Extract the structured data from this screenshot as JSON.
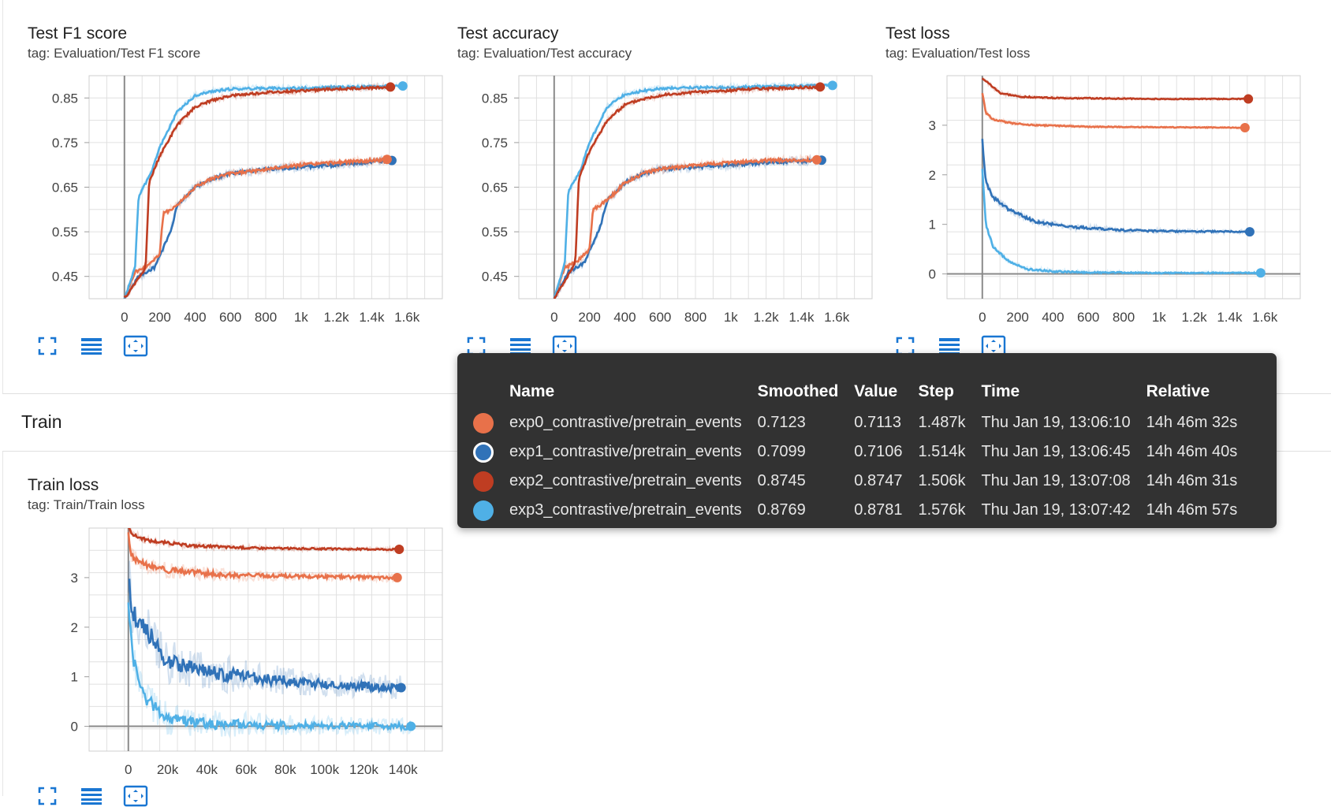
{
  "colors": {
    "exp0": "#e8714a",
    "exp1": "#3072b8",
    "exp2": "#bf3d22",
    "exp3": "#4fb0e6",
    "accent": "#1976d2"
  },
  "charts": {
    "f1": {
      "title": "Test F1 score",
      "tag": "tag: Evaluation/Test F1 score",
      "y_ticks": [
        "0.85",
        "0.75",
        "0.65",
        "0.55",
        "0.45"
      ],
      "x_ticks": [
        "0",
        "200",
        "400",
        "600",
        "800",
        "1k",
        "1.2k",
        "1.4k",
        "1.6k"
      ]
    },
    "acc": {
      "title": "Test accuracy",
      "tag": "tag: Evaluation/Test accuracy",
      "y_ticks": [
        "0.85",
        "0.75",
        "0.65",
        "0.55",
        "0.45"
      ],
      "x_ticks": [
        "0",
        "200",
        "400",
        "600",
        "800",
        "1k",
        "1.2k",
        "1.4k",
        "1.6k"
      ]
    },
    "loss": {
      "title": "Test loss",
      "tag": "tag: Evaluation/Test loss",
      "y_ticks": [
        "3",
        "2",
        "1",
        "0"
      ],
      "x_ticks": [
        "0",
        "200",
        "400",
        "600",
        "800",
        "1k",
        "1.2k",
        "1.4k",
        "1.6k"
      ]
    },
    "train": {
      "title": "Train loss",
      "tag": "tag: Train/Train loss",
      "y_ticks": [
        "3",
        "2",
        "1",
        "0"
      ],
      "x_ticks": [
        "0",
        "20k",
        "40k",
        "60k",
        "80k",
        "100k",
        "120k",
        "140k"
      ]
    }
  },
  "section": {
    "title": "Train"
  },
  "toolbar_icons": [
    "fullscreen-icon",
    "data-table-icon",
    "fit-domain-icon"
  ],
  "tooltip": {
    "headers": [
      "Name",
      "Smoothed",
      "Value",
      "Step",
      "Time",
      "Relative"
    ],
    "rows": [
      {
        "name": "exp0_contrastive/pretrain_events",
        "smoothed": "0.7123",
        "value": "0.7113",
        "step": "1.487k",
        "time": "Thu Jan 19, 13:06:10",
        "relative": "14h 46m 32s"
      },
      {
        "name": "exp1_contrastive/pretrain_events",
        "smoothed": "0.7099",
        "value": "0.7106",
        "step": "1.514k",
        "time": "Thu Jan 19, 13:06:45",
        "relative": "14h 46m 40s"
      },
      {
        "name": "exp2_contrastive/pretrain_events",
        "smoothed": "0.8745",
        "value": "0.8747",
        "step": "1.506k",
        "time": "Thu Jan 19, 13:07:08",
        "relative": "14h 46m 31s"
      },
      {
        "name": "exp3_contrastive/pretrain_events",
        "smoothed": "0.8769",
        "value": "0.8781",
        "step": "1.576k",
        "time": "Thu Jan 19, 13:07:42",
        "relative": "14h 46m 57s"
      }
    ]
  },
  "chart_data": [
    {
      "type": "line",
      "title": "Test F1 score",
      "x_ticks": [
        "0",
        "200",
        "400",
        "600",
        "800",
        "1k",
        "1.2k",
        "1.4k",
        "1.6k"
      ],
      "xlim": [
        -200,
        1800
      ],
      "ylim": [
        0.4,
        0.9
      ],
      "series": [
        {
          "name": "exp0_contrastive/pretrain_events",
          "x": [
            0,
            60,
            120,
            200,
            220,
            300,
            400,
            500,
            600,
            800,
            1000,
            1200,
            1487
          ],
          "y": [
            0.4,
            0.46,
            0.47,
            0.5,
            0.59,
            0.61,
            0.65,
            0.67,
            0.68,
            0.69,
            0.7,
            0.705,
            0.7123
          ]
        },
        {
          "name": "exp1_contrastive/pretrain_events",
          "x": [
            0,
            80,
            170,
            260,
            300,
            400,
            500,
            600,
            800,
            1000,
            1200,
            1514
          ],
          "y": [
            0.4,
            0.45,
            0.47,
            0.55,
            0.61,
            0.65,
            0.67,
            0.68,
            0.69,
            0.695,
            0.7,
            0.7099
          ]
        },
        {
          "name": "exp2_contrastive/pretrain_events",
          "x": [
            0,
            120,
            140,
            200,
            300,
            400,
            500,
            600,
            800,
            1000,
            1200,
            1506
          ],
          "y": [
            0.4,
            0.47,
            0.66,
            0.72,
            0.79,
            0.83,
            0.845,
            0.855,
            0.862,
            0.866,
            0.87,
            0.8745
          ]
        },
        {
          "name": "exp3_contrastive/pretrain_events",
          "x": [
            0,
            60,
            80,
            150,
            200,
            300,
            400,
            500,
            600,
            800,
            1000,
            1200,
            1576
          ],
          "y": [
            0.4,
            0.47,
            0.63,
            0.68,
            0.74,
            0.82,
            0.855,
            0.865,
            0.87,
            0.872,
            0.872,
            0.874,
            0.8769
          ]
        }
      ]
    },
    {
      "type": "line",
      "title": "Test accuracy",
      "x_ticks": [
        "0",
        "200",
        "400",
        "600",
        "800",
        "1k",
        "1.2k",
        "1.4k",
        "1.6k"
      ],
      "xlim": [
        -200,
        1800
      ],
      "ylim": [
        0.4,
        0.9
      ],
      "series": [
        {
          "name": "exp0_contrastive/pretrain_events",
          "x": [
            0,
            60,
            120,
            200,
            220,
            300,
            400,
            500,
            600,
            800,
            1000,
            1200,
            1487
          ],
          "y": [
            0.4,
            0.47,
            0.48,
            0.51,
            0.6,
            0.62,
            0.66,
            0.68,
            0.69,
            0.7,
            0.705,
            0.71,
            0.7113
          ]
        },
        {
          "name": "exp1_contrastive/pretrain_events",
          "x": [
            0,
            80,
            170,
            260,
            300,
            400,
            500,
            600,
            800,
            1000,
            1200,
            1514
          ],
          "y": [
            0.4,
            0.46,
            0.48,
            0.56,
            0.62,
            0.66,
            0.68,
            0.69,
            0.695,
            0.7,
            0.705,
            0.7106
          ]
        },
        {
          "name": "exp2_contrastive/pretrain_events",
          "x": [
            0,
            120,
            140,
            200,
            300,
            400,
            500,
            600,
            800,
            1000,
            1200,
            1506
          ],
          "y": [
            0.4,
            0.48,
            0.67,
            0.73,
            0.8,
            0.835,
            0.848,
            0.856,
            0.863,
            0.867,
            0.871,
            0.8747
          ]
        },
        {
          "name": "exp3_contrastive/pretrain_events",
          "x": [
            0,
            60,
            80,
            150,
            200,
            300,
            400,
            500,
            600,
            800,
            1000,
            1200,
            1576
          ],
          "y": [
            0.4,
            0.48,
            0.64,
            0.69,
            0.75,
            0.83,
            0.858,
            0.866,
            0.871,
            0.873,
            0.874,
            0.876,
            0.8781
          ]
        }
      ]
    },
    {
      "type": "line",
      "title": "Test loss",
      "x_ticks": [
        "0",
        "200",
        "400",
        "600",
        "800",
        "1k",
        "1.2k",
        "1.4k",
        "1.6k"
      ],
      "xlim": [
        -200,
        1800
      ],
      "ylim": [
        -0.5,
        4.0
      ],
      "series": [
        {
          "name": "exp0_contrastive/pretrain_events",
          "x": [
            0,
            20,
            60,
            150,
            300,
            600,
            1000,
            1487
          ],
          "y": [
            3.65,
            3.25,
            3.12,
            3.05,
            3.0,
            2.97,
            2.96,
            2.95
          ]
        },
        {
          "name": "exp1_contrastive/pretrain_events",
          "x": [
            0,
            20,
            60,
            150,
            300,
            500,
            800,
            1100,
            1514
          ],
          "y": [
            2.7,
            1.85,
            1.55,
            1.3,
            1.05,
            0.95,
            0.88,
            0.86,
            0.85
          ]
        },
        {
          "name": "exp2_contrastive/pretrain_events",
          "x": [
            0,
            50,
            100,
            200,
            400,
            700,
            1000,
            1506
          ],
          "y": [
            3.95,
            3.8,
            3.65,
            3.58,
            3.55,
            3.54,
            3.53,
            3.53
          ]
        },
        {
          "name": "exp3_contrastive/pretrain_events",
          "x": [
            0,
            20,
            60,
            150,
            250,
            400,
            600,
            1000,
            1576
          ],
          "y": [
            2.1,
            1.0,
            0.55,
            0.25,
            0.1,
            0.05,
            0.03,
            0.02,
            0.02
          ]
        }
      ]
    },
    {
      "type": "line",
      "title": "Train loss",
      "x_ticks": [
        "0",
        "20k",
        "40k",
        "60k",
        "80k",
        "100k",
        "120k",
        "140k"
      ],
      "xlim": [
        -20000,
        160000
      ],
      "ylim": [
        -0.5,
        4.0
      ],
      "series": [
        {
          "name": "exp0_contrastive/pretrain_events",
          "x": [
            0,
            1000,
            5000,
            20000,
            50000,
            100000,
            137000
          ],
          "y": [
            3.9,
            3.5,
            3.3,
            3.15,
            3.05,
            3.02,
            3.0
          ]
        },
        {
          "name": "exp1_contrastive/pretrain_events",
          "x": [
            0,
            2000,
            10000,
            20000,
            40000,
            70000,
            100000,
            139000
          ],
          "y": [
            3.1,
            2.3,
            1.9,
            1.3,
            1.1,
            0.95,
            0.85,
            0.78
          ]
        },
        {
          "name": "exp2_contrastive/pretrain_events",
          "x": [
            0,
            3000,
            10000,
            30000,
            60000,
            100000,
            138000
          ],
          "y": [
            4.0,
            3.85,
            3.75,
            3.65,
            3.6,
            3.58,
            3.57
          ]
        },
        {
          "name": "exp3_contrastive/pretrain_events",
          "x": [
            0,
            2000,
            8000,
            20000,
            40000,
            80000,
            144000
          ],
          "y": [
            2.6,
            1.4,
            0.6,
            0.15,
            0.05,
            0.02,
            0.0
          ]
        }
      ]
    }
  ]
}
